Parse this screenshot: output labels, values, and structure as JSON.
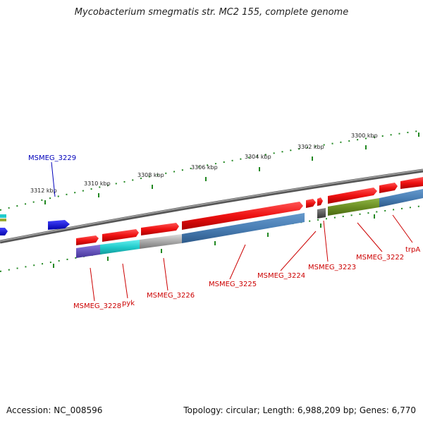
{
  "title": "Mycobacterium smegmatis str. MC2 155, complete genome",
  "footer": {
    "accession": "Accession: NC_008596",
    "topology": "Topology: circular; Length: 6,988,209 bp; Genes: 6,770"
  },
  "scale_labels": [
    "3312 kbp",
    "3310 kbp",
    "3308 kbp",
    "3306 kbp",
    "3304 kbp",
    "3302 kbp",
    "3300 kbp"
  ],
  "gene_labels": [
    "MSMEG_3229",
    "MSMEG_3228",
    "pyk",
    "MSMEG_3226",
    "MSMEG_3225",
    "MSMEG_3224",
    "MSMEG_3223",
    "MSMEG_3222",
    "trpA"
  ],
  "colors": {
    "backbone": "#7a7a7a",
    "tick_dots": "#228822",
    "forward_gene": "#ee1111",
    "minus_gene_blue": "#0000ee",
    "steelblue": "#4a7fb5",
    "purple": "#6655bb",
    "cyan": "#22cccc",
    "gray": "#aaaaaa",
    "olive": "#6b8e23",
    "label_red": "#cc0000",
    "label_blue": "#0000bb"
  }
}
